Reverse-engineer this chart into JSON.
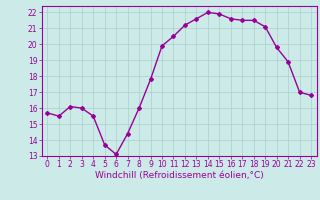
{
  "x": [
    0,
    1,
    2,
    3,
    4,
    5,
    6,
    7,
    8,
    9,
    10,
    11,
    12,
    13,
    14,
    15,
    16,
    17,
    18,
    19,
    20,
    21,
    22,
    23
  ],
  "y": [
    15.7,
    15.5,
    16.1,
    16.0,
    15.5,
    13.7,
    13.1,
    14.4,
    16.0,
    17.8,
    19.9,
    20.5,
    21.2,
    21.6,
    22.0,
    21.9,
    21.6,
    21.5,
    21.5,
    21.1,
    19.8,
    18.9,
    17.0,
    16.8
  ],
  "line_color": "#990099",
  "marker": "D",
  "marker_size": 2.0,
  "bg_color": "#cceae7",
  "grid_color": "#aacfcc",
  "xlabel": "Windchill (Refroidissement éolien,°C)",
  "xlabel_color": "#990099",
  "tick_color": "#990099",
  "ylim": [
    13,
    22.4
  ],
  "yticks": [
    13,
    14,
    15,
    16,
    17,
    18,
    19,
    20,
    21,
    22
  ],
  "xtick_labels": [
    "0",
    "1",
    "2",
    "3",
    "4",
    "5",
    "6",
    "7",
    "8",
    "9",
    "10",
    "11",
    "12",
    "13",
    "14",
    "15",
    "16",
    "17",
    "18",
    "19",
    "20",
    "21",
    "22",
    "23"
  ],
  "axis_color": "#990099",
  "linewidth": 1.0,
  "tick_fontsize": 5.5,
  "xlabel_fontsize": 6.5
}
